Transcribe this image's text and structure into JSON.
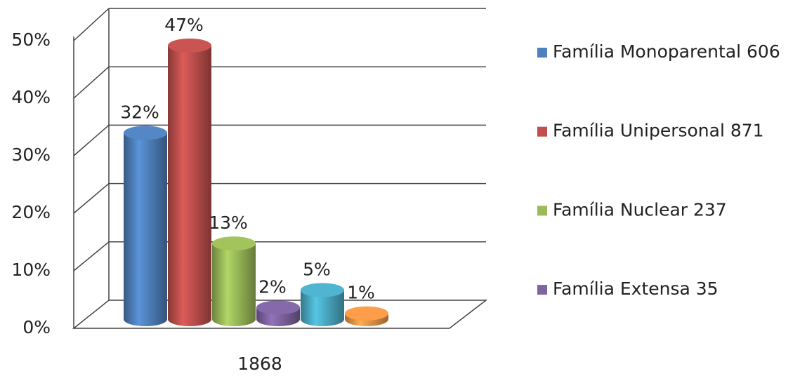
{
  "chart_data": {
    "type": "bar3d",
    "categories": [
      "1868"
    ],
    "series": [
      {
        "name": "Família Monoparental 606",
        "color": "#4f81bd",
        "values": [
          32
        ],
        "value_labels": [
          "32%"
        ]
      },
      {
        "name": "Família Unipersonal 871",
        "color": "#c0504d",
        "values": [
          47
        ],
        "value_labels": [
          "47%"
        ]
      },
      {
        "name": "Família Nuclear 237",
        "color": "#9bbb59",
        "values": [
          13
        ],
        "value_labels": [
          "13%"
        ]
      },
      {
        "name": "Família Extensa 35",
        "color": "#8064a2",
        "values": [
          2
        ],
        "value_labels": [
          "2%"
        ]
      },
      {
        "color": "#4bacc6",
        "values": [
          5
        ],
        "value_labels": [
          "5%"
        ]
      },
      {
        "color": "#f79646",
        "values": [
          1
        ],
        "value_labels": [
          "1%"
        ]
      }
    ],
    "ylim": [
      0,
      50
    ],
    "yticks": [
      {
        "value": 0,
        "label": "0%"
      },
      {
        "value": 10,
        "label": "10%"
      },
      {
        "value": 20,
        "label": "20%"
      },
      {
        "value": 30,
        "label": "30%"
      },
      {
        "value": 40,
        "label": "40%"
      },
      {
        "value": 50,
        "label": "50%"
      }
    ],
    "grid": true,
    "legend": "right"
  }
}
